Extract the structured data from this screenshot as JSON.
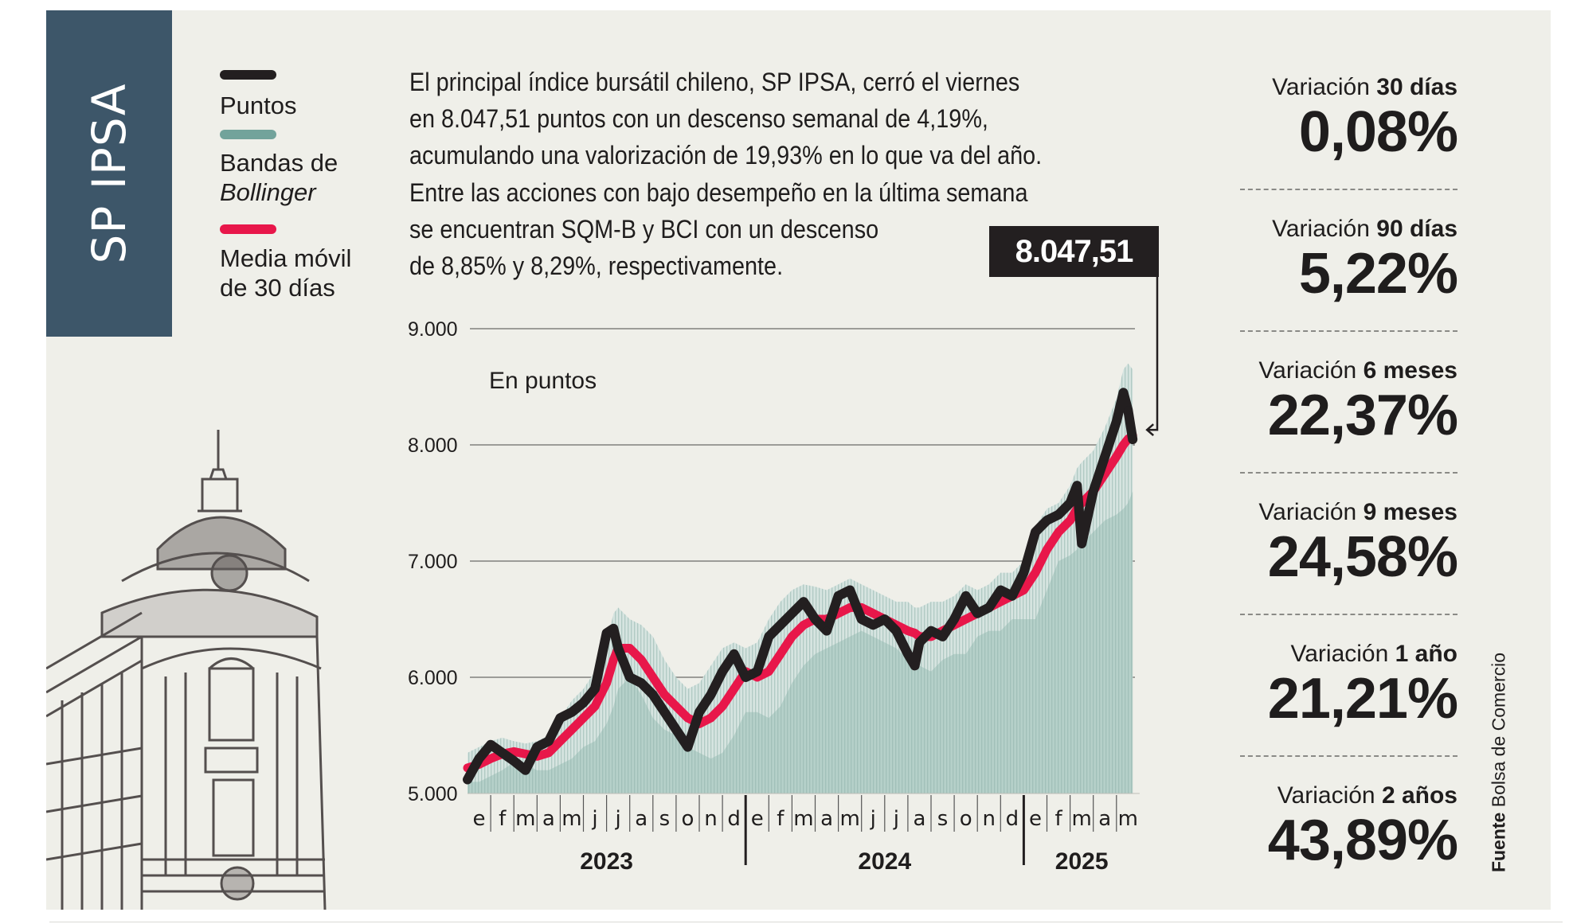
{
  "title": "SP IPSA",
  "legend": [
    {
      "label": "Puntos",
      "color": "#231f20"
    },
    {
      "label_line1": "Bandas de",
      "label_line2": "Bollinger",
      "color": "#72a39b"
    },
    {
      "label_line1": "Media móvil",
      "label_line2": "de 30 días",
      "color": "#e8174a"
    }
  ],
  "summary": [
    "El principal índice bursátil chileno, SP IPSA, cerró el viernes",
    "en 8.047,51  puntos con un descenso semanal de 4,19%,",
    "acumulando una valorización de 19,93% en lo que va del año.",
    "Entre las acciones con bajo desempeño en la última semana",
    "se encuentran SQM-B y BCI con un descenso",
    "de  8,85% y 8,29%, respectivamente."
  ],
  "callout": {
    "value": "8.047,51"
  },
  "stats": [
    {
      "label": "Variación ",
      "period": "30 días",
      "value": "0,08%"
    },
    {
      "label": "Variación ",
      "period": "90 días",
      "value": "5,22%"
    },
    {
      "label": "Variación ",
      "period": "6 meses",
      "value": "22,37%"
    },
    {
      "label": "Variación ",
      "period": "9 meses",
      "value": "24,58%"
    },
    {
      "label": "Variación ",
      "period": "1 año",
      "value": "21,21%"
    },
    {
      "label": "Variación ",
      "period": "2 años",
      "value": "43,89%"
    }
  ],
  "source": {
    "label": "Fuente",
    "name": "Bolsa de Comercio"
  },
  "colors": {
    "title_bar": "#3d5669",
    "background": "#efefe9",
    "puntos": "#231f20",
    "bollinger": "#a9c9c2",
    "media_movil": "#e8174a"
  },
  "chart_data": {
    "type": "line",
    "title": "SP IPSA",
    "ylabel": "En puntos",
    "xlabel": "",
    "ylim": [
      5000,
      9000
    ],
    "yticks": [
      5000,
      6000,
      7000,
      8000,
      9000
    ],
    "ytick_labels": [
      "5.000",
      "6.000",
      "7.000",
      "8.000",
      "9.000"
    ],
    "grid": true,
    "legend_position": "top-left",
    "month_labels": [
      "e",
      "f",
      "m",
      "a",
      "m",
      "j",
      "j",
      "a",
      "s",
      "o",
      "n",
      "d",
      "e",
      "f",
      "m",
      "a",
      "m",
      "j",
      "j",
      "a",
      "s",
      "o",
      "n",
      "d",
      "e",
      "f",
      "m",
      "a",
      "m"
    ],
    "year_labels": [
      {
        "label": "2023",
        "months": 12
      },
      {
        "label": "2024",
        "months": 12
      },
      {
        "label": "2025",
        "months": 5
      }
    ],
    "x_unit": "months since Jan 2023",
    "x": [
      0,
      0.5,
      1,
      1.5,
      2,
      2.5,
      3,
      3.5,
      4,
      4.5,
      5,
      5.5,
      6,
      6.3,
      6.5,
      7,
      7.5,
      8,
      8.5,
      9,
      9.5,
      10,
      10.5,
      11,
      11.5,
      12,
      12.5,
      13,
      13.5,
      14,
      14.5,
      15,
      15.5,
      16,
      16.5,
      17,
      17.5,
      18,
      18.5,
      19,
      19.3,
      19.5,
      20,
      20.5,
      21,
      21.5,
      22,
      22.5,
      23,
      23.5,
      24,
      24.5,
      25,
      25.5,
      26,
      26.3,
      26.5,
      27,
      27.5,
      28,
      28.3,
      28.5,
      28.7
    ],
    "series": [
      {
        "name": "Puntos",
        "values": [
          5120,
          5300,
          5420,
          5350,
          5280,
          5200,
          5400,
          5450,
          5650,
          5700,
          5780,
          5900,
          6380,
          6420,
          6250,
          6000,
          5950,
          5850,
          5700,
          5550,
          5400,
          5700,
          5850,
          6050,
          6200,
          6000,
          6050,
          6350,
          6450,
          6550,
          6650,
          6500,
          6400,
          6700,
          6750,
          6500,
          6450,
          6500,
          6400,
          6200,
          6100,
          6300,
          6400,
          6350,
          6500,
          6700,
          6550,
          6600,
          6750,
          6700,
          6900,
          7250,
          7350,
          7400,
          7500,
          7650,
          7150,
          7600,
          7900,
          8200,
          8450,
          8300,
          8047.51
        ]
      },
      {
        "name": "Media móvil de 30 días",
        "values": [
          5220,
          5250,
          5300,
          5340,
          5360,
          5340,
          5320,
          5350,
          5450,
          5550,
          5650,
          5750,
          5950,
          6150,
          6250,
          6250,
          6150,
          6000,
          5850,
          5750,
          5650,
          5600,
          5650,
          5750,
          5900,
          6050,
          6000,
          6050,
          6200,
          6350,
          6450,
          6500,
          6500,
          6550,
          6600,
          6600,
          6550,
          6500,
          6450,
          6400,
          6380,
          6350,
          6350,
          6400,
          6450,
          6500,
          6550,
          6600,
          6650,
          6700,
          6750,
          6900,
          7100,
          7250,
          7350,
          7450,
          7500,
          7600,
          7750,
          7900,
          8000,
          8050,
          8080
        ]
      },
      {
        "name": "Bandas de Bollinger (superior)",
        "values": [
          5350,
          5400,
          5450,
          5480,
          5450,
          5430,
          5450,
          5500,
          5650,
          5800,
          5900,
          6050,
          6300,
          6550,
          6600,
          6500,
          6450,
          6350,
          6150,
          6000,
          5900,
          5950,
          6100,
          6250,
          6300,
          6250,
          6300,
          6500,
          6650,
          6750,
          6800,
          6780,
          6750,
          6800,
          6850,
          6800,
          6750,
          6700,
          6650,
          6650,
          6600,
          6600,
          6650,
          6650,
          6700,
          6800,
          6750,
          6800,
          6900,
          6900,
          7000,
          7300,
          7450,
          7500,
          7650,
          7800,
          7850,
          7950,
          8150,
          8400,
          8650,
          8700,
          8650
        ]
      },
      {
        "name": "Bandas de Bollinger (inferior)",
        "values": [
          5100,
          5100,
          5150,
          5200,
          5270,
          5250,
          5200,
          5200,
          5250,
          5300,
          5400,
          5450,
          5600,
          5750,
          5900,
          6000,
          5850,
          5650,
          5550,
          5500,
          5400,
          5350,
          5300,
          5350,
          5500,
          5700,
          5700,
          5650,
          5750,
          5950,
          6100,
          6200,
          6250,
          6300,
          6350,
          6400,
          6350,
          6300,
          6250,
          6150,
          6150,
          6100,
          6050,
          6150,
          6200,
          6200,
          6350,
          6400,
          6400,
          6500,
          6500,
          6500,
          6750,
          7000,
          7050,
          7100,
          7150,
          7250,
          7350,
          7400,
          7450,
          7500,
          7600
        ]
      }
    ],
    "annotations": [
      {
        "label": "8.047,51",
        "target": "last value"
      }
    ]
  }
}
